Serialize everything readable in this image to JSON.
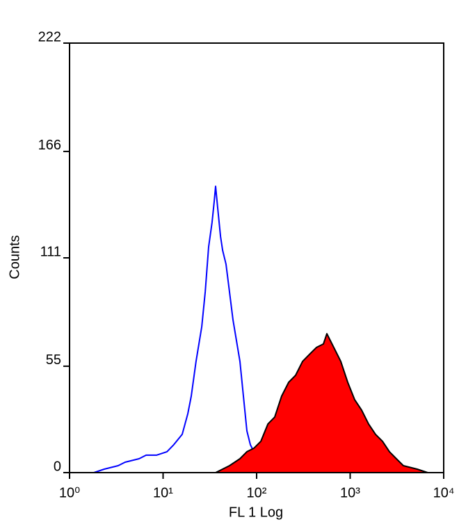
{
  "chart_data": {
    "type": "histogram",
    "xlabel": "FL 1 Log",
    "ylabel": "Counts",
    "xscale": "log",
    "xlim": [
      1,
      10000
    ],
    "xticks": [
      {
        "value": 1,
        "label": "10⁰"
      },
      {
        "value": 10,
        "label": "10¹"
      },
      {
        "value": 100,
        "label": "10²"
      },
      {
        "value": 1000,
        "label": "10³"
      },
      {
        "value": 10000,
        "label": "10⁴"
      }
    ],
    "ylim": [
      0,
      222
    ],
    "yticks": [
      0,
      55,
      111,
      166,
      222
    ],
    "grid": false,
    "series": [
      {
        "color": "#0000ff",
        "fill": "none",
        "x": [
          1.82,
          2.35,
          3.31,
          3.93,
          5.54,
          6.58,
          8.5,
          11.0,
          13.0,
          16.0,
          18.4,
          20.0,
          22.5,
          25.9,
          28.2,
          30.7,
          33.4,
          35.2,
          36.4,
          38.4,
          41.1,
          43.3,
          47.1,
          51.3,
          55.9,
          60.9,
          66.3,
          72.2,
          78.7,
          85.7,
          102,
          121,
          143
        ],
        "values": [
          0,
          1.8,
          3.6,
          5.4,
          7.2,
          9.0,
          9.0,
          10.8,
          14.4,
          19.8,
          30.5,
          39.5,
          57.5,
          75.4,
          93.4,
          116.7,
          129.3,
          140.1,
          148,
          136.5,
          122.1,
          114.9,
          107.7,
          93.4,
          79.0,
          68.2,
          57.5,
          39.5,
          21.6,
          14.4,
          7.2,
          3.6,
          0
        ]
      },
      {
        "color": "#000000",
        "fill": "#ff0000",
        "x": [
          36.4,
          51.3,
          66.3,
          78.7,
          93.4,
          111,
          132,
          156,
          185,
          220,
          261,
          310,
          367,
          436,
          517,
          564,
          669,
          794,
          942,
          1117,
          1327,
          1574,
          1867,
          2218,
          2630,
          3119,
          3707,
          5212,
          6745
        ],
        "values": [
          0,
          3.6,
          7.2,
          10.8,
          12.6,
          16.2,
          25.1,
          28.7,
          39.5,
          46.7,
          50.3,
          57.5,
          61.1,
          64.7,
          66.5,
          71.8,
          64.7,
          57.5,
          46.7,
          37.7,
          32.3,
          25.1,
          19.8,
          16.2,
          10.8,
          7.2,
          3.6,
          1.8,
          0
        ]
      }
    ]
  }
}
